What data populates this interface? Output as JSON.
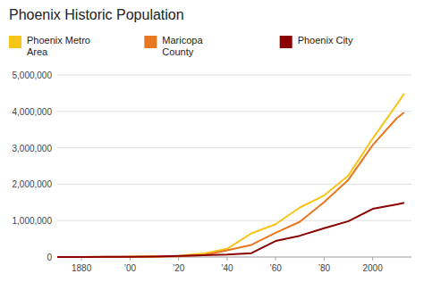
{
  "chart_data": {
    "type": "line",
    "title": "Phoenix Historic Population",
    "x": [
      1870,
      1880,
      1890,
      1900,
      1910,
      1920,
      1930,
      1940,
      1950,
      1960,
      1970,
      1980,
      1990,
      2000,
      2010,
      2013
    ],
    "series": [
      {
        "name": "Phoenix Metro\nArea",
        "color": "#F5C518",
        "values": [
          500,
          1900,
          3152,
          5544,
          11134,
          29300,
          95000,
          225000,
          650000,
          900000,
          1360000,
          1690000,
          2238480,
          3251876,
          4192887,
          4489109
        ]
      },
      {
        "name": "Maricopa\nCounty",
        "color": "#E87722",
        "values": [
          400,
          1500,
          2800,
          4900,
          10000,
          17000,
          48000,
          186000,
          331770,
          663510,
          968000,
          1509175,
          2122101,
          3072149,
          3817117,
          3969936
        ]
      },
      {
        "name": "Phoenix City",
        "color": "#8B0000",
        "values": [
          0,
          1700,
          3152,
          5544,
          11134,
          29053,
          48118,
          65414,
          106818,
          439170,
          584303,
          789704,
          983403,
          1321045,
          1445632,
          1488750
        ]
      }
    ],
    "xlim": [
      1870,
      2016
    ],
    "xticks": [
      1880,
      {
        "value": 1900,
        "label": "’00"
      },
      {
        "value": 1920,
        "label": "’20"
      },
      {
        "value": 1940,
        "label": "’40"
      },
      {
        "value": 1960,
        "label": "’60"
      },
      {
        "value": 1980,
        "label": "’80"
      },
      2000
    ],
    "ylim": [
      0,
      5000000
    ],
    "yticks": [
      0,
      {
        "value": 1000000,
        "label": "1,000,000"
      },
      {
        "value": 2000000,
        "label": "2,000,000"
      },
      {
        "value": 3000000,
        "label": "3,000,000"
      },
      {
        "value": 4000000,
        "label": "4,000,000"
      },
      {
        "value": 5000000,
        "label": "5,000,000"
      }
    ],
    "grid": true,
    "legend": "top"
  }
}
